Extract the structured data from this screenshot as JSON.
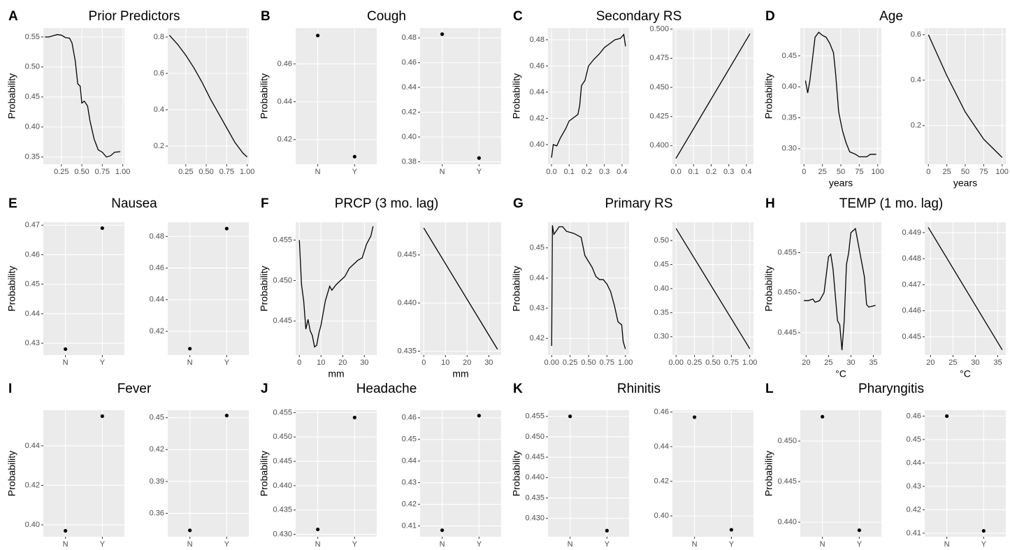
{
  "chart_data": [
    {
      "type": "line",
      "panel": "A",
      "title": "Prior Predictors",
      "ylabel": "Probability",
      "color": "#000000",
      "grid": true,
      "x": [
        0.05,
        0.1,
        0.15,
        0.2,
        0.25,
        0.3,
        0.35,
        0.38,
        0.42,
        0.45,
        0.48,
        0.5,
        0.53,
        0.57,
        0.6,
        0.65,
        0.7,
        0.75,
        0.8,
        0.85,
        0.9,
        0.97
      ],
      "values": [
        0.55,
        0.55,
        0.552,
        0.554,
        0.553,
        0.549,
        0.548,
        0.54,
        0.51,
        0.472,
        0.468,
        0.44,
        0.443,
        0.435,
        0.41,
        0.38,
        0.362,
        0.358,
        0.35,
        0.352,
        0.358,
        0.359
      ],
      "xlim": [
        0.03,
        1.02
      ],
      "xticks": [
        0.25,
        {
          "value": 0.5,
          "label": "0.50"
        },
        0.75,
        {
          "value": 1,
          "label": "1.00"
        }
      ],
      "ylim": [
        0.338,
        0.565
      ],
      "yticks": [
        0.35,
        {
          "value": 0.4,
          "label": "0.40"
        },
        0.45,
        {
          "value": 0.5,
          "label": "0.50"
        },
        0.55
      ]
    },
    {
      "type": "line",
      "color": "#000000",
      "grid": true,
      "x": [
        0.05,
        0.15,
        0.25,
        0.35,
        0.45,
        0.55,
        0.65,
        0.75,
        0.85,
        0.95,
        1.0
      ],
      "values": [
        0.81,
        0.76,
        0.7,
        0.63,
        0.55,
        0.46,
        0.38,
        0.3,
        0.22,
        0.16,
        0.14
      ],
      "xlim": [
        0.03,
        1.02
      ],
      "xticks": [
        0.25,
        {
          "value": 0.5,
          "label": "0.50"
        },
        0.75,
        {
          "value": 1,
          "label": "1.00"
        }
      ],
      "ylim": [
        0.1,
        0.85
      ],
      "yticks": [
        0.2,
        0.4,
        0.6,
        0.8
      ]
    },
    {
      "type": "scatter",
      "panel": "B",
      "title": "Cough",
      "ylabel": "Probability",
      "color": "#000000",
      "grid": true,
      "categories": [
        "N",
        "Y"
      ],
      "values": [
        0.475,
        0.411
      ],
      "ylim": [
        0.407,
        0.479
      ],
      "yticks": [
        0.42,
        0.44,
        0.46
      ]
    },
    {
      "type": "scatter",
      "color": "#000000",
      "grid": true,
      "categories": [
        "N",
        "Y"
      ],
      "values": [
        0.483,
        0.383
      ],
      "ylim": [
        0.378,
        0.488
      ],
      "yticks": [
        0.38,
        {
          "value": 0.4,
          "label": "0.40"
        },
        0.42,
        0.44,
        0.46,
        0.48
      ]
    },
    {
      "type": "line",
      "panel": "C",
      "title": "Secondary RS",
      "ylabel": "Probability",
      "color": "#000000",
      "grid": true,
      "x": [
        0,
        0.01,
        0.03,
        0.05,
        0.08,
        0.1,
        0.13,
        0.15,
        0.16,
        0.17,
        0.19,
        0.21,
        0.24,
        0.27,
        0.3,
        0.33,
        0.36,
        0.39,
        0.41,
        0.42
      ],
      "values": [
        0.39,
        0.4,
        0.399,
        0.405,
        0.412,
        0.418,
        0.421,
        0.423,
        0.43,
        0.445,
        0.449,
        0.46,
        0.465,
        0.469,
        0.474,
        0.477,
        0.48,
        0.481,
        0.484,
        0.475
      ],
      "xlim": [
        -0.02,
        0.44
      ],
      "xticks": [
        {
          "value": 0,
          "label": "0.0"
        },
        0.1,
        0.2,
        0.3,
        0.4
      ],
      "ylim": [
        0.385,
        0.489
      ],
      "yticks": [
        {
          "value": 0.4,
          "label": "0.40"
        },
        0.42,
        0.44,
        0.46,
        0.48
      ]
    },
    {
      "type": "line",
      "color": "#000000",
      "grid": true,
      "x": [
        0,
        0.42
      ],
      "values": [
        0.389,
        0.496
      ],
      "xlim": [
        -0.02,
        0.44
      ],
      "xticks": [
        {
          "value": 0,
          "label": "0.0"
        },
        0.1,
        0.2,
        0.3,
        0.4
      ],
      "ylim": [
        0.384,
        0.501
      ],
      "yticks": [
        {
          "value": 0.4,
          "label": "0.400"
        },
        0.425,
        {
          "value": 0.45,
          "label": "0.450"
        },
        0.475,
        {
          "value": 0.5,
          "label": "0.500"
        }
      ]
    },
    {
      "type": "line",
      "panel": "D",
      "title": "Age",
      "ylabel": "Probability",
      "xlabel": "years",
      "color": "#000000",
      "grid": true,
      "x": [
        2,
        5,
        8,
        12,
        15,
        20,
        25,
        30,
        35,
        40,
        43,
        47,
        52,
        57,
        62,
        70,
        75,
        85,
        90,
        98
      ],
      "values": [
        0.41,
        0.39,
        0.41,
        0.45,
        0.48,
        0.488,
        0.483,
        0.48,
        0.47,
        0.455,
        0.42,
        0.36,
        0.33,
        0.31,
        0.295,
        0.291,
        0.287,
        0.287,
        0.291,
        0.291
      ],
      "xlim": [
        -5,
        105
      ],
      "xticks": [
        0,
        25,
        50,
        75,
        100
      ],
      "ylim": [
        0.275,
        0.495
      ],
      "yticks": [
        {
          "value": 0.3,
          "label": "0.30"
        },
        0.35,
        {
          "value": 0.4,
          "label": "0.40"
        },
        0.45
      ]
    },
    {
      "type": "line",
      "xlabel": "years",
      "color": "#000000",
      "grid": true,
      "x": [
        0,
        25,
        50,
        75,
        100
      ],
      "values": [
        0.6,
        0.42,
        0.26,
        0.14,
        0.06
      ],
      "xlim": [
        -5,
        105
      ],
      "xticks": [
        0,
        25,
        50,
        75,
        100
      ],
      "ylim": [
        0.03,
        0.63
      ],
      "yticks": [
        0.2,
        0.4,
        0.6
      ]
    },
    {
      "type": "scatter",
      "panel": "E",
      "title": "Nausea",
      "ylabel": "Probability",
      "color": "#000000",
      "grid": true,
      "categories": [
        "N",
        "Y"
      ],
      "values": [
        0.428,
        0.469
      ],
      "ylim": [
        0.426,
        0.471
      ],
      "yticks": [
        0.43,
        0.44,
        0.45,
        0.46,
        0.47
      ]
    },
    {
      "type": "scatter",
      "color": "#000000",
      "grid": true,
      "categories": [
        "N",
        "Y"
      ],
      "values": [
        0.409,
        0.485
      ],
      "ylim": [
        0.405,
        0.489
      ],
      "yticks": [
        0.42,
        0.44,
        0.46,
        0.48
      ]
    },
    {
      "type": "line",
      "panel": "F",
      "title": "PRCP (3 mo. lag)",
      "ylabel": "Probability",
      "xlabel": "mm",
      "color": "#000000",
      "grid": true,
      "x": [
        0,
        1,
        2,
        3,
        4,
        5,
        6,
        7,
        8,
        9,
        10,
        12,
        14,
        15,
        17,
        19,
        21,
        23,
        25,
        27,
        29,
        31,
        33,
        34
      ],
      "values": [
        0.455,
        0.4495,
        0.4475,
        0.444,
        0.4452,
        0.4438,
        0.4432,
        0.4418,
        0.442,
        0.4435,
        0.4445,
        0.4475,
        0.4493,
        0.4488,
        0.4495,
        0.45,
        0.4505,
        0.4515,
        0.452,
        0.4525,
        0.4528,
        0.4545,
        0.4555,
        0.4567
      ],
      "xlim": [
        -1.7,
        35.7
      ],
      "xticks": [
        0,
        10,
        20,
        30
      ],
      "ylim": [
        0.4408,
        0.4572
      ],
      "yticks": [
        0.445,
        {
          "value": 0.45,
          "label": "0.450"
        },
        0.455
      ]
    },
    {
      "type": "line",
      "xlabel": "mm",
      "color": "#000000",
      "grid": true,
      "x": [
        0,
        34
      ],
      "values": [
        0.4478,
        0.4352
      ],
      "xlim": [
        -1.7,
        35.7
      ],
      "xticks": [
        0,
        10,
        20,
        30
      ],
      "ylim": [
        0.4346,
        0.4484
      ],
      "yticks": [
        0.435,
        {
          "value": 0.44,
          "label": "0.440"
        },
        0.445
      ]
    },
    {
      "type": "line",
      "panel": "G",
      "title": "Primary RS",
      "ylabel": "Probability",
      "color": "#000000",
      "grid": true,
      "x": [
        0,
        0.01,
        0.03,
        0.06,
        0.1,
        0.15,
        0.2,
        0.3,
        0.4,
        0.45,
        0.5,
        0.55,
        0.6,
        0.65,
        0.7,
        0.75,
        0.8,
        0.85,
        0.9,
        0.95,
        0.97,
        1.0
      ],
      "values": [
        0.4175,
        0.4575,
        0.4545,
        0.4555,
        0.457,
        0.457,
        0.4555,
        0.4548,
        0.4535,
        0.4475,
        0.4455,
        0.4435,
        0.4405,
        0.4395,
        0.4395,
        0.438,
        0.4355,
        0.431,
        0.4255,
        0.4245,
        0.419,
        0.4165
      ],
      "xlim": [
        -0.05,
        1.05
      ],
      "xticks": [
        {
          "value": 0,
          "label": "0.00"
        },
        0.25,
        {
          "value": 0.5,
          "label": "0.50"
        },
        0.75,
        {
          "value": 1,
          "label": "1.00"
        }
      ],
      "ylim": [
        0.4145,
        0.4585
      ],
      "yticks": [
        0.42,
        0.43,
        0.44,
        0.45
      ]
    },
    {
      "type": "line",
      "color": "#000000",
      "grid": true,
      "x": [
        0,
        1
      ],
      "values": [
        0.525,
        0.275
      ],
      "xlim": [
        -0.05,
        1.05
      ],
      "xticks": [
        {
          "value": 0,
          "label": "0.00"
        },
        0.25,
        {
          "value": 0.5,
          "label": "0.50"
        },
        0.75,
        {
          "value": 1,
          "label": "1.00"
        }
      ],
      "ylim": [
        0.262,
        0.538
      ],
      "yticks": [
        {
          "value": 0.3,
          "label": "0.30"
        },
        0.35,
        {
          "value": 0.4,
          "label": "0.40"
        },
        0.45,
        {
          "value": 0.5,
          "label": "0.50"
        }
      ]
    },
    {
      "type": "line",
      "panel": "H",
      "title": "TEMP (1 mo. lag)",
      "ylabel": "Probability",
      "xlabel": "°C",
      "color": "#000000",
      "grid": true,
      "x": [
        19.5,
        20.5,
        21.5,
        22,
        23,
        24,
        25,
        25.5,
        26,
        27,
        27.5,
        28,
        28.5,
        29,
        29.5,
        30,
        31,
        32,
        33,
        33.5,
        34,
        35.5
      ],
      "values": [
        0.449,
        0.449,
        0.4492,
        0.4488,
        0.449,
        0.45,
        0.4545,
        0.4548,
        0.453,
        0.4465,
        0.446,
        0.4428,
        0.4465,
        0.4535,
        0.455,
        0.4575,
        0.458,
        0.455,
        0.452,
        0.4485,
        0.4482,
        0.4484
      ],
      "xlim": [
        18.7,
        36.8
      ],
      "xticks": [
        20,
        25,
        30,
        35
      ],
      "ylim": [
        0.4422,
        0.4588
      ],
      "yticks": [
        0.445,
        {
          "value": 0.45,
          "label": "0.450"
        },
        0.455
      ]
    },
    {
      "type": "line",
      "xlabel": "°C",
      "color": "#000000",
      "grid": true,
      "x": [
        19.5,
        36
      ],
      "values": [
        0.4492,
        0.4445
      ],
      "xlim": [
        18.7,
        36.8
      ],
      "xticks": [
        20,
        25,
        30,
        35
      ],
      "ylim": [
        0.4443,
        0.4494
      ],
      "yticks": [
        0.445,
        0.446,
        0.447,
        0.448,
        0.449
      ]
    },
    {
      "type": "scatter",
      "panel": "I",
      "title": "Fever",
      "ylabel": "Probability",
      "color": "#000000",
      "grid": true,
      "categories": [
        "N",
        "Y"
      ],
      "values": [
        0.397,
        0.455
      ],
      "ylim": [
        0.394,
        0.458
      ],
      "yticks": [
        {
          "value": 0.4,
          "label": "0.40"
        },
        0.42,
        0.44
      ]
    },
    {
      "type": "scatter",
      "color": "#000000",
      "grid": true,
      "categories": [
        "N",
        "Y"
      ],
      "values": [
        0.344,
        0.452
      ],
      "ylim": [
        0.338,
        0.457
      ],
      "yticks": [
        0.36,
        0.39,
        0.42,
        0.45
      ]
    },
    {
      "type": "scatter",
      "panel": "J",
      "title": "Headache",
      "ylabel": "Probability",
      "color": "#000000",
      "grid": true,
      "categories": [
        "N",
        "Y"
      ],
      "values": [
        0.431,
        0.454
      ],
      "ylim": [
        0.4295,
        0.4555
      ],
      "yticks": [
        {
          "value": 0.43,
          "label": "0.430"
        },
        0.435,
        {
          "value": 0.44,
          "label": "0.440"
        },
        0.445,
        {
          "value": 0.45,
          "label": "0.450"
        },
        0.455
      ]
    },
    {
      "type": "scatter",
      "color": "#000000",
      "grid": true,
      "categories": [
        "N",
        "Y"
      ],
      "values": [
        0.408,
        0.461
      ],
      "ylim": [
        0.405,
        0.4635
      ],
      "yticks": [
        0.41,
        0.42,
        0.43,
        0.44,
        0.45,
        0.46
      ]
    },
    {
      "type": "scatter",
      "panel": "K",
      "title": "Rhinitis",
      "ylabel": "Probability",
      "color": "#000000",
      "grid": true,
      "categories": [
        "N",
        "Y"
      ],
      "values": [
        0.455,
        0.427
      ],
      "ylim": [
        0.4255,
        0.4565
      ],
      "yticks": [
        {
          "value": 0.43,
          "label": "0.430"
        },
        0.435,
        {
          "value": 0.44,
          "label": "0.440"
        },
        0.445,
        {
          "value": 0.45,
          "label": "0.450"
        },
        0.455
      ]
    },
    {
      "type": "scatter",
      "color": "#000000",
      "grid": true,
      "categories": [
        "N",
        "Y"
      ],
      "values": [
        0.457,
        0.392
      ],
      "ylim": [
        0.388,
        0.461
      ],
      "yticks": [
        {
          "value": 0.4,
          "label": "0.40"
        },
        0.42,
        0.44,
        0.46
      ]
    },
    {
      "type": "scatter",
      "panel": "L",
      "title": "Pharyngitis",
      "ylabel": "Probability",
      "color": "#000000",
      "grid": true,
      "categories": [
        "N",
        "Y"
      ],
      "values": [
        0.453,
        0.439
      ],
      "ylim": [
        0.4382,
        0.4538
      ],
      "yticks": [
        {
          "value": 0.44,
          "label": "0.440"
        },
        0.445,
        {
          "value": 0.45,
          "label": "0.450"
        }
      ]
    },
    {
      "type": "scatter",
      "color": "#000000",
      "grid": true,
      "categories": [
        "N",
        "Y"
      ],
      "values": [
        0.46,
        0.411
      ],
      "ylim": [
        0.4085,
        0.4625
      ],
      "yticks": [
        0.41,
        0.42,
        0.43,
        0.44,
        0.45,
        0.46
      ]
    }
  ]
}
